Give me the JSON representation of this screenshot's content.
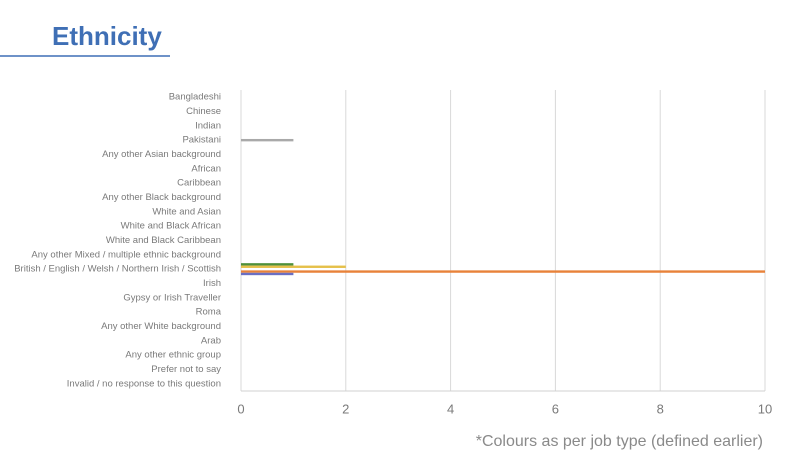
{
  "chart_data": {
    "type": "bar",
    "orientation": "horizontal",
    "title": "Ethnicity",
    "annotation": "*Colours as per job type (defined earlier)",
    "categories": [
      "Bangladeshi",
      "Chinese",
      "Indian",
      "Pakistani",
      "Any other Asian background",
      "African",
      "Caribbean",
      "Any other Black background",
      "White and Asian",
      "White and Black African",
      "White and Black Caribbean",
      "Any other Mixed / multiple ethnic background",
      "British / English / Welsh / Northern Irish / Scottish",
      "Irish",
      "Gypsy or Irish Traveller",
      "Roma",
      "Any other White background",
      "Arab",
      "Any other ethnic group",
      "Prefer not to say",
      "Invalid / no response to this question"
    ],
    "series": [
      {
        "color": "#4e8f3a",
        "values": [
          0,
          0,
          0,
          0,
          0,
          0,
          0,
          0,
          0,
          0,
          0,
          0,
          1,
          0,
          0,
          0,
          0,
          0,
          0,
          0,
          0
        ]
      },
      {
        "color": "#e5c04a",
        "values": [
          0,
          0,
          0,
          0,
          0,
          0,
          0,
          0,
          0,
          0,
          0,
          0,
          2,
          0,
          0,
          0,
          0,
          0,
          0,
          0,
          0
        ]
      },
      {
        "color": "#a9a9a9",
        "values": [
          0,
          0,
          0,
          1,
          0,
          0,
          0,
          0,
          0,
          0,
          0,
          0,
          0,
          0,
          0,
          0,
          0,
          0,
          0,
          0,
          0
        ]
      },
      {
        "color": "#e8823a",
        "values": [
          0,
          0,
          0,
          0,
          0,
          0,
          0,
          0,
          0,
          0,
          0,
          0,
          10,
          0,
          0,
          0,
          0,
          0,
          0,
          0,
          0
        ]
      },
      {
        "color": "#6a6fc4",
        "values": [
          0,
          0,
          0,
          0,
          0,
          0,
          0,
          0,
          0,
          0,
          0,
          0,
          1,
          0,
          0,
          0,
          0,
          0,
          0,
          0,
          0
        ]
      }
    ],
    "xlim": [
      0,
      10
    ],
    "xticks": [
      0,
      2,
      4,
      6,
      8,
      10
    ],
    "grid": true
  }
}
